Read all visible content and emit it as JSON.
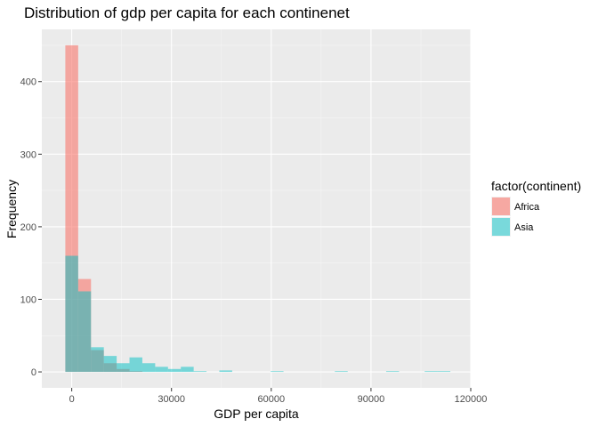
{
  "chart_data": {
    "type": "histogram",
    "title": "Distribution of gdp per capita for each continenet",
    "xlabel": "GDP per capita",
    "ylabel": "Frequency",
    "xlim": [
      -9000,
      120000
    ],
    "ylim": [
      -22,
      472
    ],
    "x_ticks": [
      0,
      30000,
      60000,
      90000,
      120000
    ],
    "x_tick_labels": [
      "0",
      "30000",
      "60000",
      "90000",
      "120000"
    ],
    "y_ticks": [
      0,
      100,
      200,
      300,
      400
    ],
    "y_tick_labels": [
      "0",
      "100",
      "200",
      "300",
      "400"
    ],
    "bin_width": 3860,
    "first_bin_left": -1930,
    "grid": true,
    "legend_title": "factor(continent)",
    "legend_position": "right",
    "series": [
      {
        "name": "Africa",
        "color": "#F8766D",
        "opacity": 0.6,
        "counts": [
          450,
          128,
          30,
          12,
          4,
          1,
          0,
          0,
          0,
          0,
          0,
          0,
          0,
          0,
          0,
          0,
          0,
          0,
          0,
          0,
          0,
          0,
          0,
          0,
          0,
          0,
          0,
          0,
          0,
          0
        ]
      },
      {
        "name": "Asia",
        "color": "#00BFC4",
        "opacity": 0.5,
        "counts": [
          160,
          111,
          34,
          22,
          12,
          20,
          12,
          7,
          4,
          7,
          1,
          0,
          2,
          0,
          0,
          0,
          1,
          0,
          0,
          0,
          0,
          1,
          0,
          0,
          0,
          1,
          0,
          0,
          1,
          1
        ]
      }
    ]
  }
}
